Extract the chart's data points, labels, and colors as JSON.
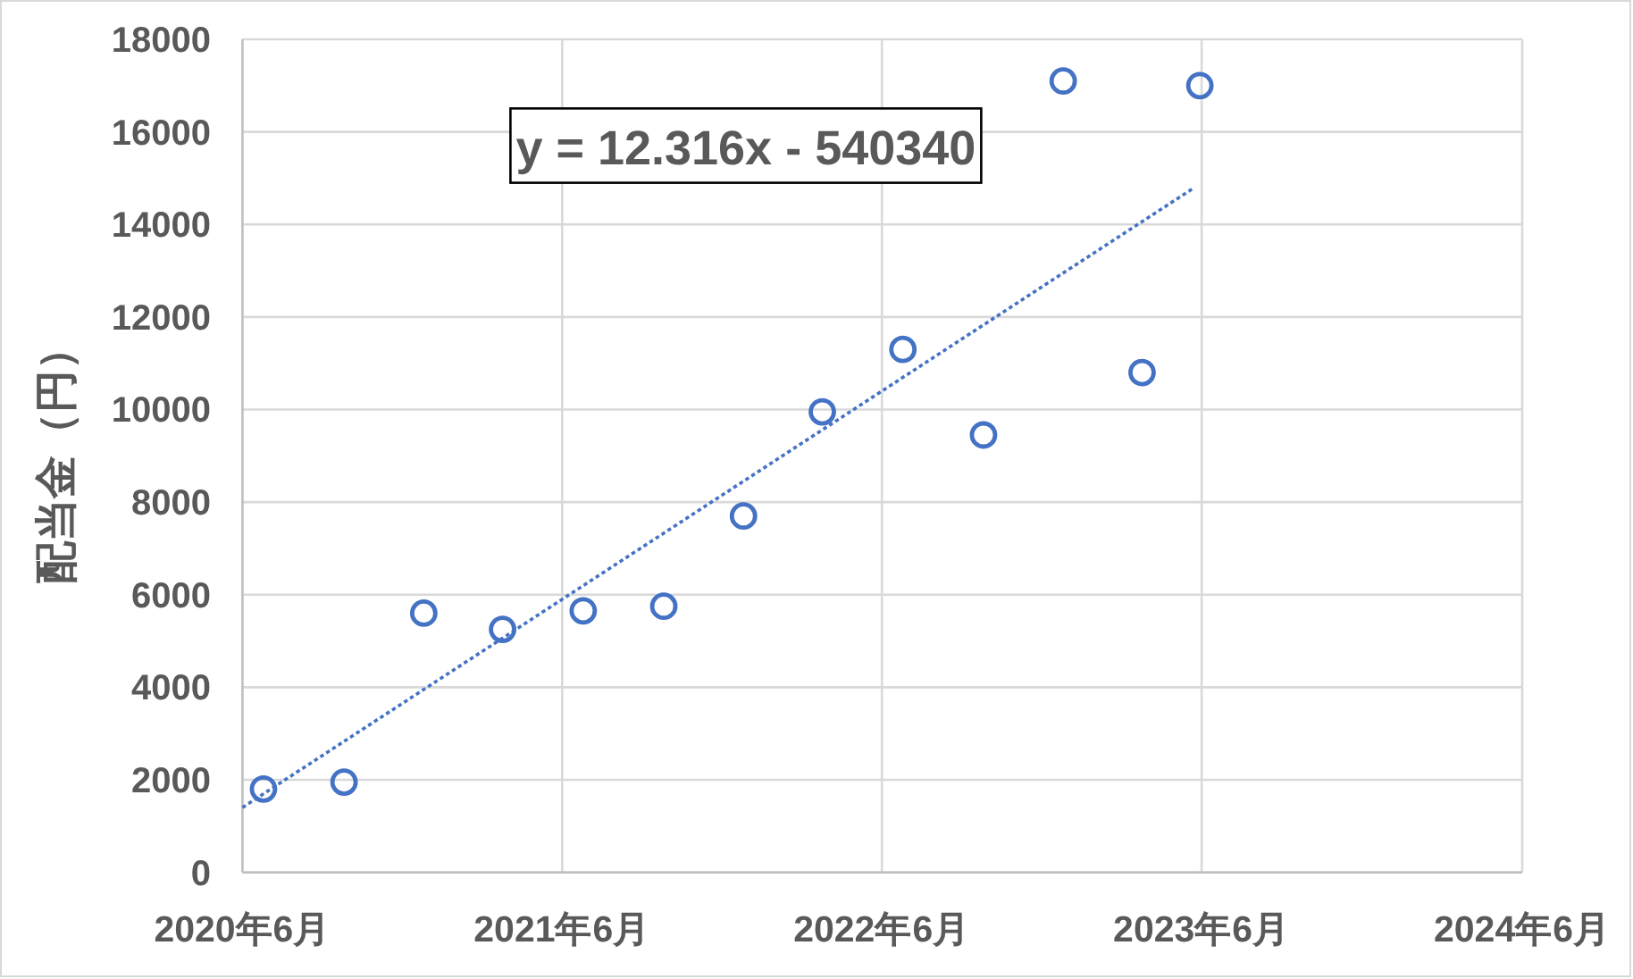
{
  "chart_data": {
    "type": "scatter",
    "ylabel": "配当金（円）",
    "annotations": [
      "y = 12.316x - 540340"
    ],
    "xlim": [
      "2020-06",
      "2024-06"
    ],
    "xticks": [
      {
        "value": "2020-06",
        "label": "2020年6月"
      },
      {
        "value": "2021-06",
        "label": "2021年6月"
      },
      {
        "value": "2022-06",
        "label": "2022年6月"
      },
      {
        "value": "2023-06",
        "label": "2023年6月"
      },
      {
        "value": "2024-06",
        "label": "2024年6月"
      }
    ],
    "ylim": [
      0,
      18000
    ],
    "yticks": [
      0,
      2000,
      4000,
      6000,
      8000,
      10000,
      12000,
      14000,
      16000,
      18000
    ],
    "grid": true,
    "marker": "circle",
    "series": [
      {
        "color": "#4472c4",
        "x": [
          "2020-06-25",
          "2020-09-25",
          "2020-12-25",
          "2021-03-25",
          "2021-06-25",
          "2021-09-25",
          "2021-12-25",
          "2022-03-25",
          "2022-06-25",
          "2022-09-25",
          "2022-12-25",
          "2023-03-25",
          "2023-05-30"
        ],
        "values": [
          1800,
          1950,
          5600,
          5250,
          5650,
          5750,
          7700,
          9950,
          11300,
          9450,
          17100,
          10800,
          17000
        ]
      },
      {
        "type": "line",
        "color": "#4472c4",
        "line_style": "dotted",
        "marker": "none",
        "x": [
          "2020-06-01",
          "2023-05-24"
        ],
        "values": [
          1400,
          14800
        ]
      }
    ]
  }
}
